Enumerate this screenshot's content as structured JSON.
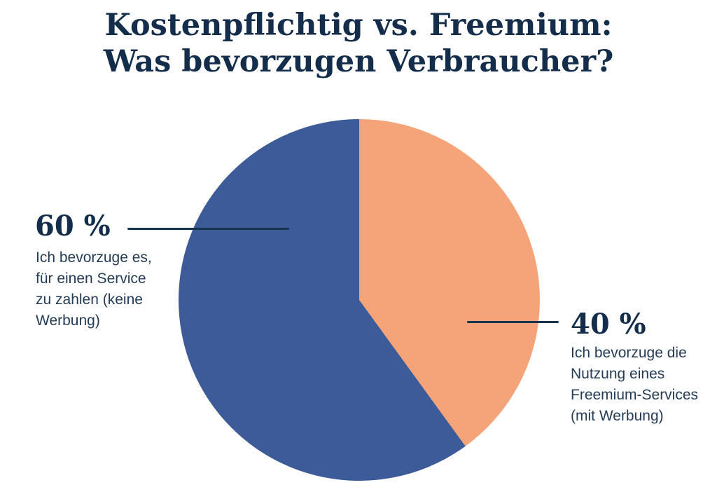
{
  "colors": {
    "heading": "#132D4B",
    "body": "#243C56",
    "callout_line": "#16334F",
    "background": "#FFFFFF"
  },
  "chart_data": {
    "type": "pie",
    "title": "Kostenpflichtig vs. Freemium: Was bevorzugen Verbraucher?",
    "title_lines": [
      "Kostenpflichtig vs. Freemium:",
      "Was bevorzugen Verbraucher?"
    ],
    "unit": "%",
    "start_angle": "12-oclock",
    "direction": "clockwise",
    "legend_position": "callouts",
    "slices": [
      {
        "id": "freemium",
        "side": "right",
        "value": 40,
        "percent_label": "40 %",
        "color": "#F4A478",
        "description": "Ich bevorzuge die\nNutzung eines\nFreemium-Services\n(mit Werbung)"
      },
      {
        "id": "paid",
        "side": "left",
        "value": 60,
        "percent_label": "60 %",
        "color": "#3D5B98",
        "description": "Ich bevorzuge es,\nfür einen Service\nzu zahlen (keine\nWerbung)"
      }
    ]
  }
}
